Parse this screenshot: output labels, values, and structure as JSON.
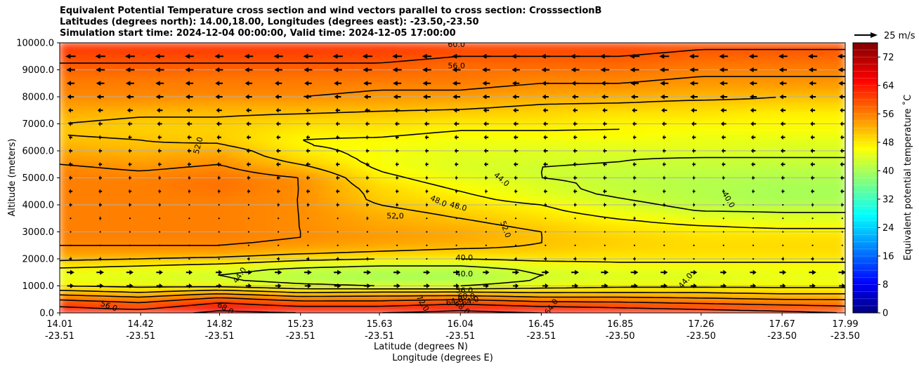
{
  "chart_data": {
    "type": "heatmap",
    "title_lines": [
      "Equivalent Potential Temperature cross section and wind vectors parallel to cross section: CrosssectionB",
      "Latitudes (degrees north): 14.00,18.00, Longitudes (degrees east): -23.50,-23.50",
      "Simulation start time: 2024-12-04 00:00:00, Valid time: 2024-12-05 17:00:00"
    ],
    "xlabel_lat": "Latitude (degrees N)",
    "xlabel_lon": "Longitude (degrees E)",
    "ylabel": "Altitude (meters)",
    "xlim": [
      14.01,
      17.99
    ],
    "ylim": [
      0,
      10000
    ],
    "x_ticks": [
      {
        "lat": "14.01",
        "lon": "-23.51",
        "value": 14.01
      },
      {
        "lat": "14.42",
        "lon": "-23.51",
        "value": 14.42
      },
      {
        "lat": "14.82",
        "lon": "-23.51",
        "value": 14.82
      },
      {
        "lat": "15.23",
        "lon": "-23.51",
        "value": 15.23
      },
      {
        "lat": "15.63",
        "lon": "-23.51",
        "value": 15.63
      },
      {
        "lat": "16.04",
        "lon": "-23.51",
        "value": 16.04
      },
      {
        "lat": "16.45",
        "lon": "-23.51",
        "value": 16.45
      },
      {
        "lat": "16.85",
        "lon": "-23.50",
        "value": 16.85
      },
      {
        "lat": "17.26",
        "lon": "-23.50",
        "value": 17.26
      },
      {
        "lat": "17.67",
        "lon": "-23.50",
        "value": 17.67
      },
      {
        "lat": "17.99",
        "lon": "-23.50",
        "value": 17.99
      }
    ],
    "y_ticks": [
      "0.0",
      "1000.0",
      "2000.0",
      "3000.0",
      "4000.0",
      "5000.0",
      "6000.0",
      "7000.0",
      "8000.0",
      "9000.0",
      "10000.0"
    ],
    "y_tick_values": [
      0,
      1000,
      2000,
      3000,
      4000,
      5000,
      6000,
      7000,
      8000,
      9000,
      10000
    ],
    "grid": "horizontal",
    "colorbar": {
      "label": "Equivalent potential temperature $^\\circ$C",
      "label_display": "Equivalent potential temperature ˚C",
      "range": [
        0,
        76
      ],
      "ticks": [
        "0",
        "8",
        "16",
        "24",
        "32",
        "40",
        "48",
        "56",
        "64",
        "72"
      ],
      "tick_values": [
        0,
        8,
        16,
        24,
        32,
        40,
        48,
        56,
        64,
        72
      ],
      "colormap": "jet"
    },
    "quiver_key": {
      "label": "25 m/s",
      "speed": 25
    },
    "profile_z": [
      0,
      250,
      500,
      750,
      1000,
      1250,
      1500,
      1750,
      2000,
      2250,
      2500,
      2750,
      3000,
      3250,
      3500,
      3750,
      4000,
      4250,
      4500,
      4750,
      5000,
      5250,
      5500,
      5750,
      6000,
      6250,
      6500,
      6750,
      7000,
      7250,
      7500,
      7750,
      8000,
      8250,
      8500,
      8750,
      9000,
      9250,
      9500,
      9750,
      10000
    ],
    "theta_e_columns": [
      {
        "x": 14.01,
        "values": [
          66,
          64,
          60,
          54,
          48,
          46,
          46,
          49,
          53,
          55,
          56,
          57,
          57,
          57,
          57,
          57,
          57,
          57,
          57,
          57,
          57,
          57,
          56,
          55,
          54,
          53,
          52,
          52,
          52,
          53,
          54,
          55,
          56,
          57,
          57,
          58,
          59,
          60,
          61,
          62,
          63
        ]
      },
      {
        "x": 14.42,
        "values": [
          66,
          62,
          58,
          52,
          47,
          45,
          45,
          48,
          52,
          55,
          56,
          57,
          57,
          57,
          57,
          57,
          57,
          57,
          57,
          57,
          57,
          56,
          55,
          54,
          53,
          52,
          52,
          51,
          51,
          52,
          53,
          55,
          56,
          57,
          57,
          58,
          59,
          60,
          61,
          62,
          63
        ]
      },
      {
        "x": 14.82,
        "values": [
          69,
          66,
          62,
          55,
          47,
          44,
          44,
          47,
          51,
          55,
          56,
          57,
          57,
          57,
          57,
          57,
          57,
          57,
          58,
          58,
          58,
          57,
          56,
          55,
          54,
          52,
          51,
          51,
          51,
          52,
          53,
          54,
          56,
          57,
          57,
          58,
          59,
          60,
          61,
          62,
          63
        ]
      },
      {
        "x": 15.23,
        "values": [
          68,
          64,
          59,
          52,
          45,
          42,
          42,
          45,
          49,
          53,
          55,
          56,
          56,
          56,
          56,
          56,
          56,
          56,
          56,
          56,
          56,
          54,
          52,
          50,
          49,
          48,
          48,
          49,
          50,
          51,
          53,
          54,
          56,
          57,
          57,
          58,
          59,
          60,
          61,
          62,
          63
        ]
      },
      {
        "x": 15.63,
        "values": [
          68,
          64,
          59,
          53,
          44,
          41,
          41,
          44,
          48,
          52,
          54,
          55,
          55,
          54,
          54,
          53,
          52,
          51,
          51,
          50,
          49,
          48,
          47,
          47,
          47,
          47,
          48,
          49,
          50,
          51,
          52,
          54,
          55,
          56,
          57,
          58,
          59,
          60,
          61,
          62,
          63
        ]
      },
      {
        "x": 16.04,
        "values": [
          69,
          66,
          60,
          53,
          44,
          41,
          41,
          44,
          48,
          51,
          53,
          54,
          54,
          53,
          52,
          51,
          50,
          49,
          48,
          47,
          46,
          45,
          45,
          45,
          46,
          46,
          47,
          48,
          49,
          50,
          52,
          53,
          55,
          56,
          57,
          58,
          58,
          59,
          60,
          61,
          62
        ]
      },
      {
        "x": 16.45,
        "values": [
          68,
          64,
          58,
          52,
          46,
          44,
          44,
          46,
          49,
          51,
          52,
          52,
          52,
          51,
          50,
          49,
          48,
          46,
          45,
          45,
          44,
          44,
          44,
          45,
          45,
          46,
          47,
          48,
          49,
          50,
          51,
          52,
          54,
          55,
          56,
          57,
          58,
          59,
          60,
          61,
          62
        ]
      },
      {
        "x": 16.85,
        "values": [
          67,
          63,
          58,
          52,
          47,
          45,
          45,
          47,
          49,
          50,
          51,
          51,
          50,
          49,
          48,
          46,
          45,
          44,
          43,
          43,
          43,
          43,
          44,
          44,
          45,
          46,
          47,
          48,
          48,
          49,
          50,
          52,
          53,
          55,
          56,
          57,
          58,
          59,
          60,
          61,
          62
        ]
      },
      {
        "x": 17.26,
        "values": [
          66,
          62,
          57,
          52,
          47,
          45,
          45,
          47,
          49,
          50,
          50,
          50,
          49,
          48,
          46,
          44,
          43,
          42,
          42,
          42,
          42,
          43,
          43,
          44,
          45,
          46,
          46,
          47,
          48,
          49,
          50,
          51,
          53,
          54,
          55,
          56,
          57,
          58,
          59,
          60,
          61
        ]
      },
      {
        "x": 17.67,
        "values": [
          65,
          61,
          56,
          51,
          47,
          46,
          46,
          47,
          49,
          50,
          50,
          50,
          49,
          47,
          45,
          44,
          42,
          41,
          41,
          41,
          42,
          42,
          43,
          44,
          45,
          45,
          46,
          47,
          48,
          48,
          49,
          51,
          52,
          54,
          55,
          56,
          57,
          58,
          59,
          60,
          61
        ]
      },
      {
        "x": 17.99,
        "values": [
          64,
          60,
          56,
          51,
          47,
          46,
          46,
          47,
          49,
          50,
          50,
          50,
          49,
          47,
          45,
          44,
          42,
          41,
          41,
          41,
          42,
          42,
          43,
          44,
          45,
          45,
          46,
          47,
          48,
          48,
          49,
          51,
          52,
          54,
          55,
          56,
          57,
          58,
          59,
          60,
          61
        ]
      }
    ],
    "wind_speed_profile": [
      {
        "z": 1000,
        "u": 8
      },
      {
        "z": 1500,
        "u": 9
      },
      {
        "z": 2000,
        "u": 3
      },
      {
        "z": 2500,
        "u": 0
      },
      {
        "z": 3000,
        "u": -1
      },
      {
        "z": 3500,
        "u": -2
      },
      {
        "z": 4000,
        "u": -3
      },
      {
        "z": 4500,
        "u": -4
      },
      {
        "z": 5000,
        "u": -4
      },
      {
        "z": 5500,
        "u": -5
      },
      {
        "z": 6000,
        "u": -5
      },
      {
        "z": 6500,
        "u": -5
      },
      {
        "z": 7000,
        "u": -6
      },
      {
        "z": 7500,
        "u": -7
      },
      {
        "z": 8000,
        "u": -9
      },
      {
        "z": 8500,
        "u": -10
      },
      {
        "z": 9000,
        "u": -11
      },
      {
        "z": 9500,
        "u": -12
      }
    ],
    "contour_labels": [
      {
        "text": "60.0",
        "x": 16.02,
        "z": 9950,
        "angle": 0
      },
      {
        "text": "56.0",
        "x": 16.02,
        "z": 9150,
        "angle": 0
      },
      {
        "text": "52.0",
        "x": 14.71,
        "z": 6200,
        "angle": -75
      },
      {
        "text": "44.0",
        "x": 16.25,
        "z": 4950,
        "angle": 40
      },
      {
        "text": "40.0",
        "x": 17.4,
        "z": 4200,
        "angle": 60
      },
      {
        "text": "48.0",
        "x": 15.93,
        "z": 4150,
        "angle": 25
      },
      {
        "text": "48.0",
        "x": 16.03,
        "z": 3950,
        "angle": 15
      },
      {
        "text": "52.0",
        "x": 15.71,
        "z": 3600,
        "angle": 0
      },
      {
        "text": "52.0",
        "x": 16.27,
        "z": 3100,
        "angle": 70
      },
      {
        "text": "40.0",
        "x": 16.06,
        "z": 2050,
        "angle": 0
      },
      {
        "text": "40.0",
        "x": 16.06,
        "z": 1450,
        "angle": 0
      },
      {
        "text": "44.0",
        "x": 14.92,
        "z": 1400,
        "angle": -55
      },
      {
        "text": "44.0",
        "x": 17.18,
        "z": 1200,
        "angle": -50
      },
      {
        "text": "56.0",
        "x": 16.06,
        "z": 850,
        "angle": 0
      },
      {
        "text": "60.0",
        "x": 16.07,
        "z": 620,
        "angle": 0
      },
      {
        "text": "64.0",
        "x": 16.01,
        "z": 450,
        "angle": -15
      },
      {
        "text": "64.0",
        "x": 16.09,
        "z": 450,
        "angle": -15
      },
      {
        "text": "56.0",
        "x": 14.26,
        "z": 260,
        "angle": 20
      },
      {
        "text": "68.0",
        "x": 14.85,
        "z": 180,
        "angle": 30
      },
      {
        "text": "72.0",
        "x": 15.85,
        "z": 360,
        "angle": 60
      },
      {
        "text": "68.0",
        "x": 16.05,
        "z": 210,
        "angle": 40
      },
      {
        "text": "64.0",
        "x": 16.5,
        "z": 230,
        "angle": -55
      }
    ]
  }
}
